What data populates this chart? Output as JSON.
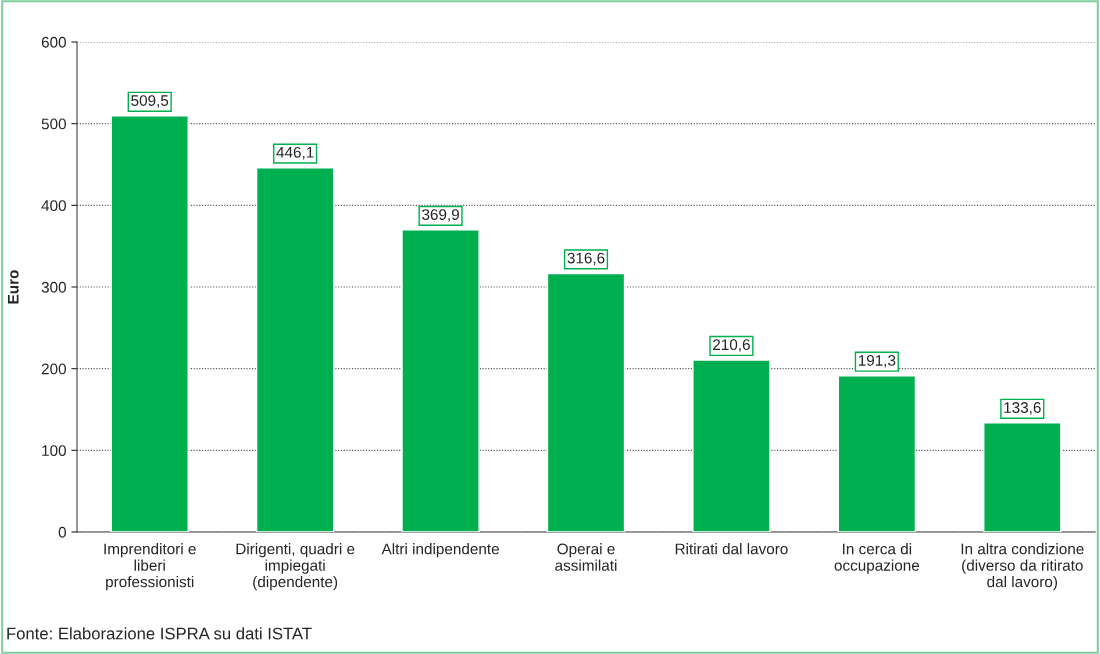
{
  "chart_data": {
    "type": "bar",
    "ylabel": "Euro",
    "categories": [
      "Imprenditori e\nliberi\nprofessionisti",
      "Dirigenti, quadri e\nimpiegati\n(dipendente)",
      "Altri indipendente",
      "Operai e\nassimilati",
      "Ritirati dal lavoro",
      "In cerca di\noccupazione",
      "In altra condizione\n(diverso da ritirato\ndal lavoro)"
    ],
    "values": [
      509.5,
      446.1,
      369.9,
      316.6,
      210.6,
      191.3,
      133.6
    ],
    "color": "#00b050",
    "ylim": [
      0,
      600
    ],
    "yticks": [
      0,
      100,
      200,
      300,
      400,
      500,
      600
    ],
    "grid": "y",
    "value_labels": [
      "509,5",
      "446,1",
      "369,9",
      "316,6",
      "210,6",
      "191,3",
      "133,6"
    ],
    "legend": false,
    "annotations": [
      "Fonte: Elaborazione ISPRA su dati ISTAT"
    ]
  }
}
